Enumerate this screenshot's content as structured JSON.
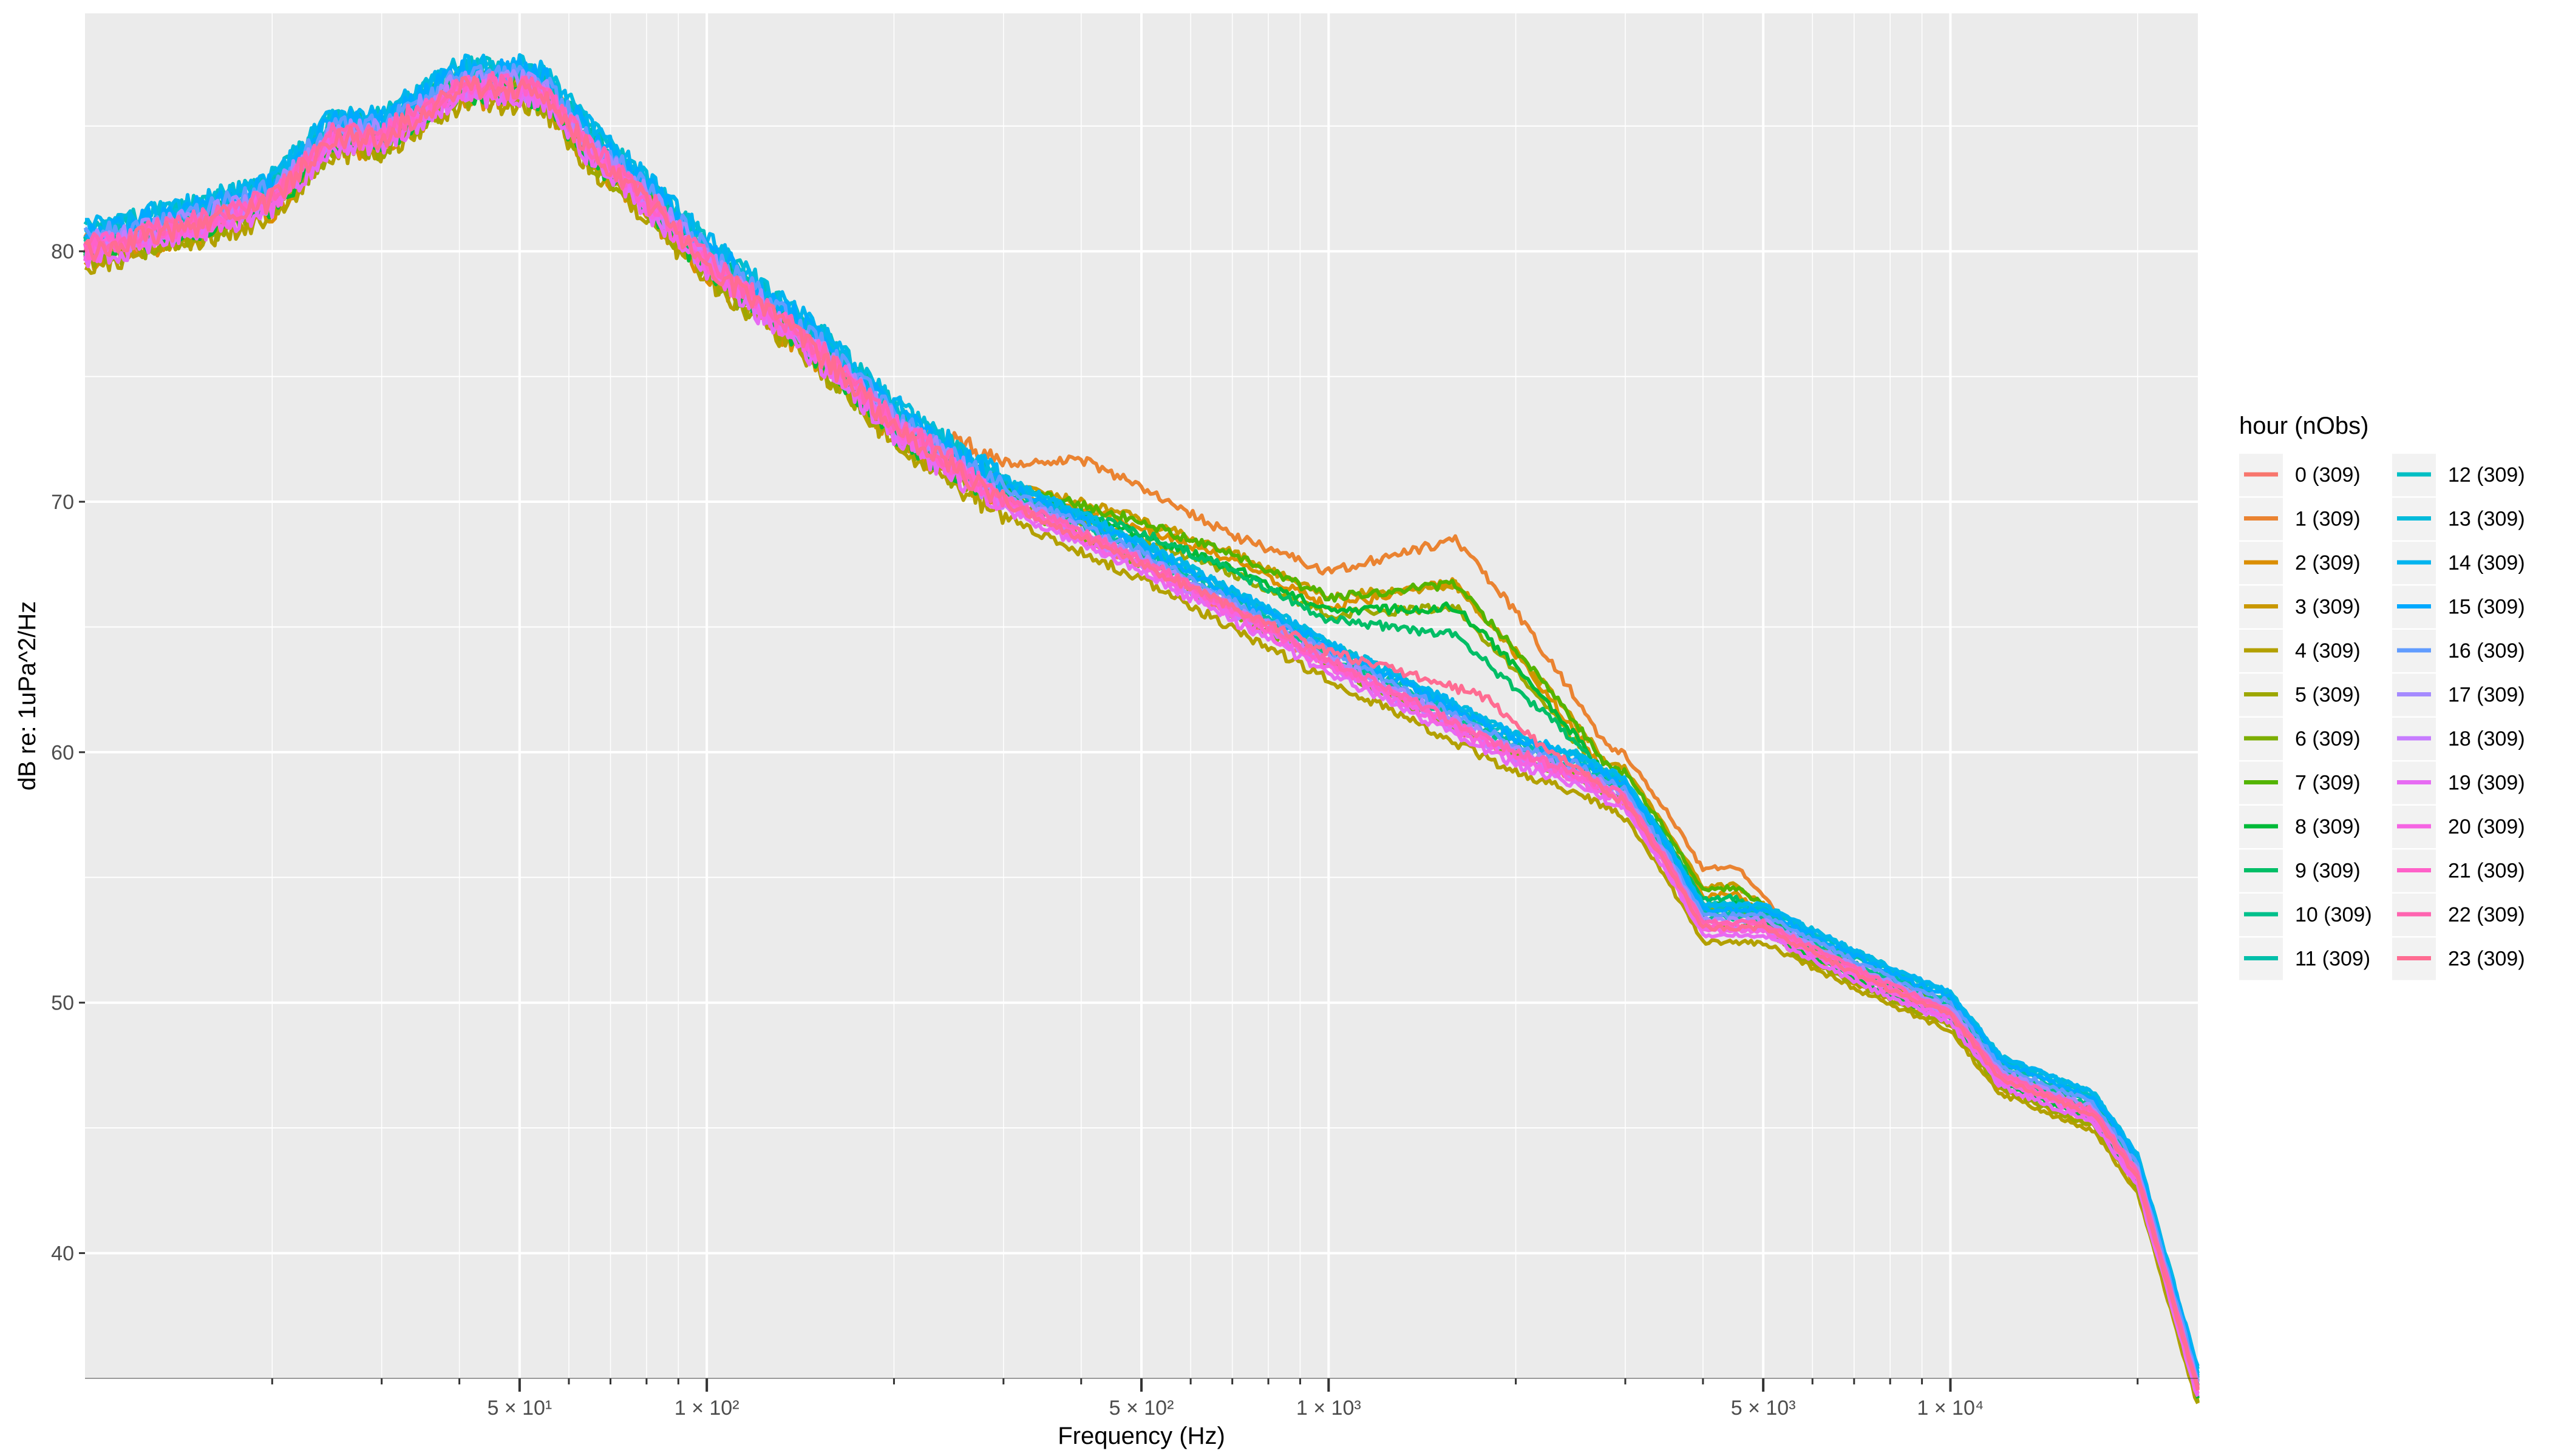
{
  "chart_data": {
    "type": "line",
    "xlabel": "Frequency (Hz)",
    "ylabel": "dB re: 1uPa^2/Hz",
    "x_scale": "log10",
    "xlim": [
      10,
      25000
    ],
    "ylim": [
      35,
      89.5
    ],
    "grid": true,
    "y_ticks": [
      {
        "value": 40,
        "label": "40"
      },
      {
        "value": 50,
        "label": "50"
      },
      {
        "value": 60,
        "label": "60"
      },
      {
        "value": 70,
        "label": "70"
      },
      {
        "value": 80,
        "label": "80"
      }
    ],
    "x_ticks": [
      {
        "value": 50,
        "label": "5 × 10¹"
      },
      {
        "value": 100,
        "label": "1 × 10²"
      },
      {
        "value": 500,
        "label": "5 × 10²"
      },
      {
        "value": 1000,
        "label": "1 × 10³"
      },
      {
        "value": 5000,
        "label": "5 × 10³"
      },
      {
        "value": 10000,
        "label": "1 × 10⁴"
      }
    ],
    "legend": {
      "title": "hour (nObs)",
      "position": "right",
      "entries": [
        {
          "label": "0 (309)",
          "color": "#F8766D"
        },
        {
          "label": "1 (309)",
          "color": "#EA8331"
        },
        {
          "label": "2 (309)",
          "color": "#DB8E00"
        },
        {
          "label": "3 (309)",
          "color": "#C99800"
        },
        {
          "label": "4 (309)",
          "color": "#B3A000"
        },
        {
          "label": "5 (309)",
          "color": "#9DA700"
        },
        {
          "label": "6 (309)",
          "color": "#7CAE00"
        },
        {
          "label": "7 (309)",
          "color": "#53B400"
        },
        {
          "label": "8 (309)",
          "color": "#00BA38"
        },
        {
          "label": "9 (309)",
          "color": "#00BE67"
        },
        {
          "label": "10 (309)",
          "color": "#00C08B"
        },
        {
          "label": "11 (309)",
          "color": "#00BFAA"
        },
        {
          "label": "12 (309)",
          "color": "#00BFC4"
        },
        {
          "label": "13 (309)",
          "color": "#00BBDB"
        },
        {
          "label": "14 (309)",
          "color": "#00B4EF"
        },
        {
          "label": "15 (309)",
          "color": "#00A9FF"
        },
        {
          "label": "16 (309)",
          "color": "#619CFF"
        },
        {
          "label": "17 (309)",
          "color": "#A58AFF"
        },
        {
          "label": "18 (309)",
          "color": "#C77CFF"
        },
        {
          "label": "19 (309)",
          "color": "#E76BF3"
        },
        {
          "label": "20 (309)",
          "color": "#F564E3"
        },
        {
          "label": "21 (309)",
          "color": "#FF61C9"
        },
        {
          "label": "22 (309)",
          "color": "#FF64B0"
        },
        {
          "label": "23 (309)",
          "color": "#FF6C92"
        }
      ]
    },
    "base_curve": {
      "x": [
        10,
        15,
        20,
        25,
        30,
        40,
        50,
        55,
        65,
        80,
        100,
        150,
        200,
        300,
        500,
        1000,
        2000,
        2500,
        3000,
        3500,
        4000,
        5000,
        6000,
        8000,
        10000,
        12000,
        15000,
        17000,
        20000,
        25000
      ],
      "y": [
        80,
        81,
        82,
        84.5,
        84.5,
        86.5,
        86.5,
        86.2,
        84,
        82,
        79.5,
        76,
        73,
        70,
        67.5,
        63.5,
        59.8,
        59,
        58,
        55.5,
        53,
        53,
        52,
        50.5,
        49.5,
        47,
        46,
        45.5,
        43,
        34.5
      ]
    },
    "series_y_offsets": [
      0,
      0.3,
      -0.4,
      0.2,
      -0.6,
      -0.4,
      0,
      0.3,
      -0.2,
      0.2,
      0.4,
      0.6,
      0.8,
      0.9,
      0.9,
      0.7,
      0.5,
      0.3,
      0,
      -0.3,
      -0.1,
      0.1,
      0.2,
      0
    ],
    "mid_frequency_bumps": [
      {
        "series": "1 (309)",
        "points": [
          [
            200,
            0
          ],
          [
            320,
            1.5
          ],
          [
            400,
            2.8
          ],
          [
            700,
            2.8
          ],
          [
            1000,
            3.4
          ],
          [
            1600,
            7.2
          ],
          [
            2000,
            5.5
          ],
          [
            2800,
            1.5
          ],
          [
            4500,
            2.2
          ],
          [
            5500,
            0
          ]
        ]
      },
      {
        "series": "2 (309)",
        "points": [
          [
            250,
            0
          ],
          [
            400,
            1.5
          ],
          [
            700,
            2.5
          ],
          [
            1000,
            2.7
          ],
          [
            1600,
            6.2
          ],
          [
            2000,
            4.5
          ],
          [
            2800,
            1
          ],
          [
            4500,
            1.8
          ],
          [
            5500,
            0
          ]
        ]
      },
      {
        "series": "3 (309)",
        "points": [
          [
            250,
            0
          ],
          [
            400,
            1.2
          ],
          [
            700,
            2.2
          ],
          [
            1000,
            2.5
          ],
          [
            1600,
            5.5
          ],
          [
            2000,
            4
          ],
          [
            2800,
            1
          ],
          [
            4500,
            1.5
          ],
          [
            5500,
            0
          ]
        ]
      },
      {
        "series": "5 (309)",
        "points": [
          [
            250,
            0
          ],
          [
            400,
            1
          ],
          [
            700,
            2
          ],
          [
            1000,
            2.4
          ],
          [
            1600,
            5.2
          ],
          [
            2000,
            3.8
          ],
          [
            2800,
            0.8
          ],
          [
            4500,
            1.2
          ],
          [
            5500,
            0
          ]
        ]
      },
      {
        "series": "7 (309)",
        "points": [
          [
            250,
            0
          ],
          [
            400,
            1
          ],
          [
            700,
            2
          ],
          [
            1000,
            2.4
          ],
          [
            1600,
            5.4
          ],
          [
            2000,
            4
          ],
          [
            2800,
            0.8
          ],
          [
            4500,
            1.3
          ],
          [
            5500,
            0
          ]
        ]
      },
      {
        "series": "8 (309)",
        "points": [
          [
            250,
            0
          ],
          [
            400,
            1
          ],
          [
            700,
            2
          ],
          [
            1000,
            2.3
          ],
          [
            1600,
            5
          ],
          [
            2000,
            3.8
          ],
          [
            2800,
            0.8
          ],
          [
            4500,
            1.2
          ],
          [
            5500,
            0
          ]
        ]
      },
      {
        "series": "9 (309)",
        "points": [
          [
            250,
            0
          ],
          [
            400,
            0.8
          ],
          [
            700,
            1.5
          ],
          [
            1000,
            1.6
          ],
          [
            1600,
            3.5
          ],
          [
            2000,
            2.5
          ],
          [
            2800,
            0.6
          ],
          [
            4500,
            1
          ],
          [
            5500,
            0
          ]
        ]
      },
      {
        "series": "23 (309)",
        "points": [
          [
            500,
            0
          ],
          [
            1000,
            0.5
          ],
          [
            1400,
            1.3
          ],
          [
            1800,
            1.8
          ],
          [
            2200,
            0.8
          ],
          [
            2800,
            0
          ],
          [
            5500,
            0
          ]
        ]
      }
    ]
  }
}
